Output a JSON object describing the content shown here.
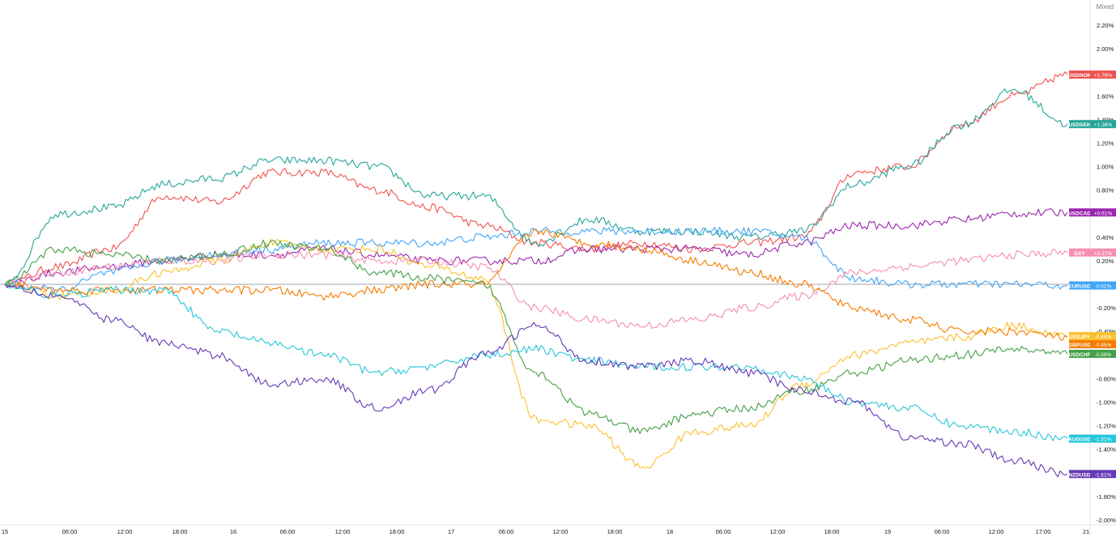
{
  "chart_data": {
    "type": "line",
    "scale_mode": "Mixed",
    "x_ticks": [
      "15",
      "06:00",
      "12:00",
      "18:00",
      "16",
      "06:00",
      "12:00",
      "18:00",
      "17",
      "06:00",
      "12:00",
      "18:00",
      "18",
      "06:00",
      "12:00",
      "18:00",
      "19",
      "06:00",
      "12:00",
      "17:00",
      "21"
    ],
    "y_ticks": [
      "2.20%",
      "2.00%",
      "1.80%",
      "1.60%",
      "1.40%",
      "1.20%",
      "1.00%",
      "0.80%",
      "0.60%",
      "0.40%",
      "0.20%",
      "0.00%",
      "-0.20%",
      "-0.40%",
      "-0.60%",
      "-0.80%",
      "-1.00%",
      "-1.20%",
      "-1.40%",
      "-1.60%",
      "-1.80%",
      "-2.00%"
    ],
    "y_tick_values": [
      2.2,
      2.0,
      1.8,
      1.6,
      1.4,
      1.2,
      1.0,
      0.8,
      0.6,
      0.4,
      0.2,
      0.0,
      -0.2,
      -0.4,
      -0.6,
      -0.8,
      -1.0,
      -1.2,
      -1.4,
      -1.6,
      -1.8,
      -2.0
    ],
    "ylim": [
      -2.05,
      2.38
    ],
    "x": [
      "15",
      "06:00",
      "12:00",
      "18:00",
      "16",
      "06:00",
      "12:00",
      "18:00",
      "17",
      "06:00",
      "12:00",
      "18:00",
      "18",
      "06:00",
      "12:00",
      "18:00",
      "19",
      "06:00",
      "12:00",
      "17:00",
      "21"
    ],
    "series": [
      {
        "name": "USDNOK",
        "label": "+1.78%",
        "color": "#ef5350",
        "values": [
          0.0,
          0.15,
          0.3,
          0.75,
          0.7,
          0.95,
          0.95,
          0.8,
          0.65,
          0.5,
          0.35,
          0.3,
          0.35,
          0.3,
          0.35,
          0.4,
          0.95,
          1.0,
          1.35,
          1.6,
          1.78
        ]
      },
      {
        "name": "USDSEK",
        "label": "+1.36%",
        "color": "#26a69a",
        "values": [
          0.0,
          0.6,
          0.65,
          0.85,
          0.9,
          1.05,
          1.05,
          1.0,
          0.75,
          0.75,
          0.35,
          0.55,
          0.45,
          0.45,
          0.4,
          0.45,
          0.85,
          1.0,
          1.35,
          1.65,
          1.36
        ]
      },
      {
        "name": "USDCAD",
        "label": "+0.61%",
        "color": "#9c27b0",
        "values": [
          0.0,
          0.1,
          0.15,
          0.2,
          0.25,
          0.25,
          0.3,
          0.25,
          0.2,
          0.2,
          0.2,
          0.3,
          0.3,
          0.3,
          0.25,
          0.35,
          0.5,
          0.5,
          0.55,
          0.6,
          0.61
        ]
      },
      {
        "name": "DXY",
        "label": "+0.27%",
        "color": "#f48fb1",
        "values": [
          0.0,
          0.1,
          0.15,
          0.2,
          0.2,
          0.25,
          0.25,
          0.2,
          0.2,
          0.15,
          -0.2,
          -0.3,
          -0.35,
          -0.3,
          -0.2,
          -0.1,
          0.1,
          0.15,
          0.2,
          0.25,
          0.27
        ]
      },
      {
        "name": "EURUSD",
        "label": "-0.01%",
        "color": "#42a5f5",
        "values": [
          0.0,
          -0.05,
          0.1,
          0.2,
          0.25,
          0.3,
          0.35,
          0.35,
          0.35,
          0.4,
          0.45,
          0.45,
          0.45,
          0.45,
          0.45,
          0.4,
          0.05,
          0.0,
          0.0,
          0.0,
          -0.01
        ]
      },
      {
        "name": "USDJPY",
        "label": "-0.44%",
        "color": "#fbc02d",
        "values": [
          0.0,
          -0.1,
          -0.05,
          0.1,
          0.2,
          0.35,
          0.3,
          0.3,
          0.15,
          0.05,
          -1.15,
          -1.2,
          -1.55,
          -1.25,
          -1.2,
          -0.85,
          -0.6,
          -0.5,
          -0.45,
          -0.35,
          -0.44
        ]
      },
      {
        "name": "GBPUSD",
        "label": "-0.45%",
        "color": "#f57c00",
        "values": [
          0.0,
          -0.05,
          -0.05,
          -0.05,
          -0.05,
          -0.05,
          -0.1,
          -0.05,
          0.0,
          0.0,
          0.45,
          0.35,
          0.3,
          0.2,
          0.1,
          0.0,
          -0.2,
          -0.3,
          -0.4,
          -0.4,
          -0.45
        ]
      },
      {
        "name": "USDCHF",
        "label": "-0.59%",
        "color": "#43a047",
        "values": [
          0.0,
          0.3,
          0.25,
          0.2,
          0.25,
          0.35,
          0.3,
          0.1,
          0.05,
          0.0,
          -0.75,
          -1.1,
          -1.25,
          -1.1,
          -1.05,
          -0.9,
          -0.75,
          -0.65,
          -0.6,
          -0.55,
          -0.59
        ]
      },
      {
        "name": "AUDUSD",
        "label": "-1.31%",
        "color": "#26c6da",
        "values": [
          0.0,
          -0.1,
          -0.05,
          -0.05,
          -0.4,
          -0.5,
          -0.6,
          -0.75,
          -0.7,
          -0.6,
          -0.55,
          -0.65,
          -0.7,
          -0.7,
          -0.7,
          -0.8,
          -1.0,
          -1.05,
          -1.2,
          -1.25,
          -1.31
        ]
      },
      {
        "name": "NZDUSD",
        "label": "-1.61%",
        "color": "#673ab7",
        "values": [
          0.0,
          -0.1,
          -0.3,
          -0.5,
          -0.6,
          -0.85,
          -0.8,
          -1.05,
          -0.9,
          -0.6,
          -0.35,
          -0.65,
          -0.7,
          -0.65,
          -0.75,
          -0.9,
          -1.0,
          -1.3,
          -1.35,
          -1.5,
          -1.61
        ]
      }
    ]
  }
}
